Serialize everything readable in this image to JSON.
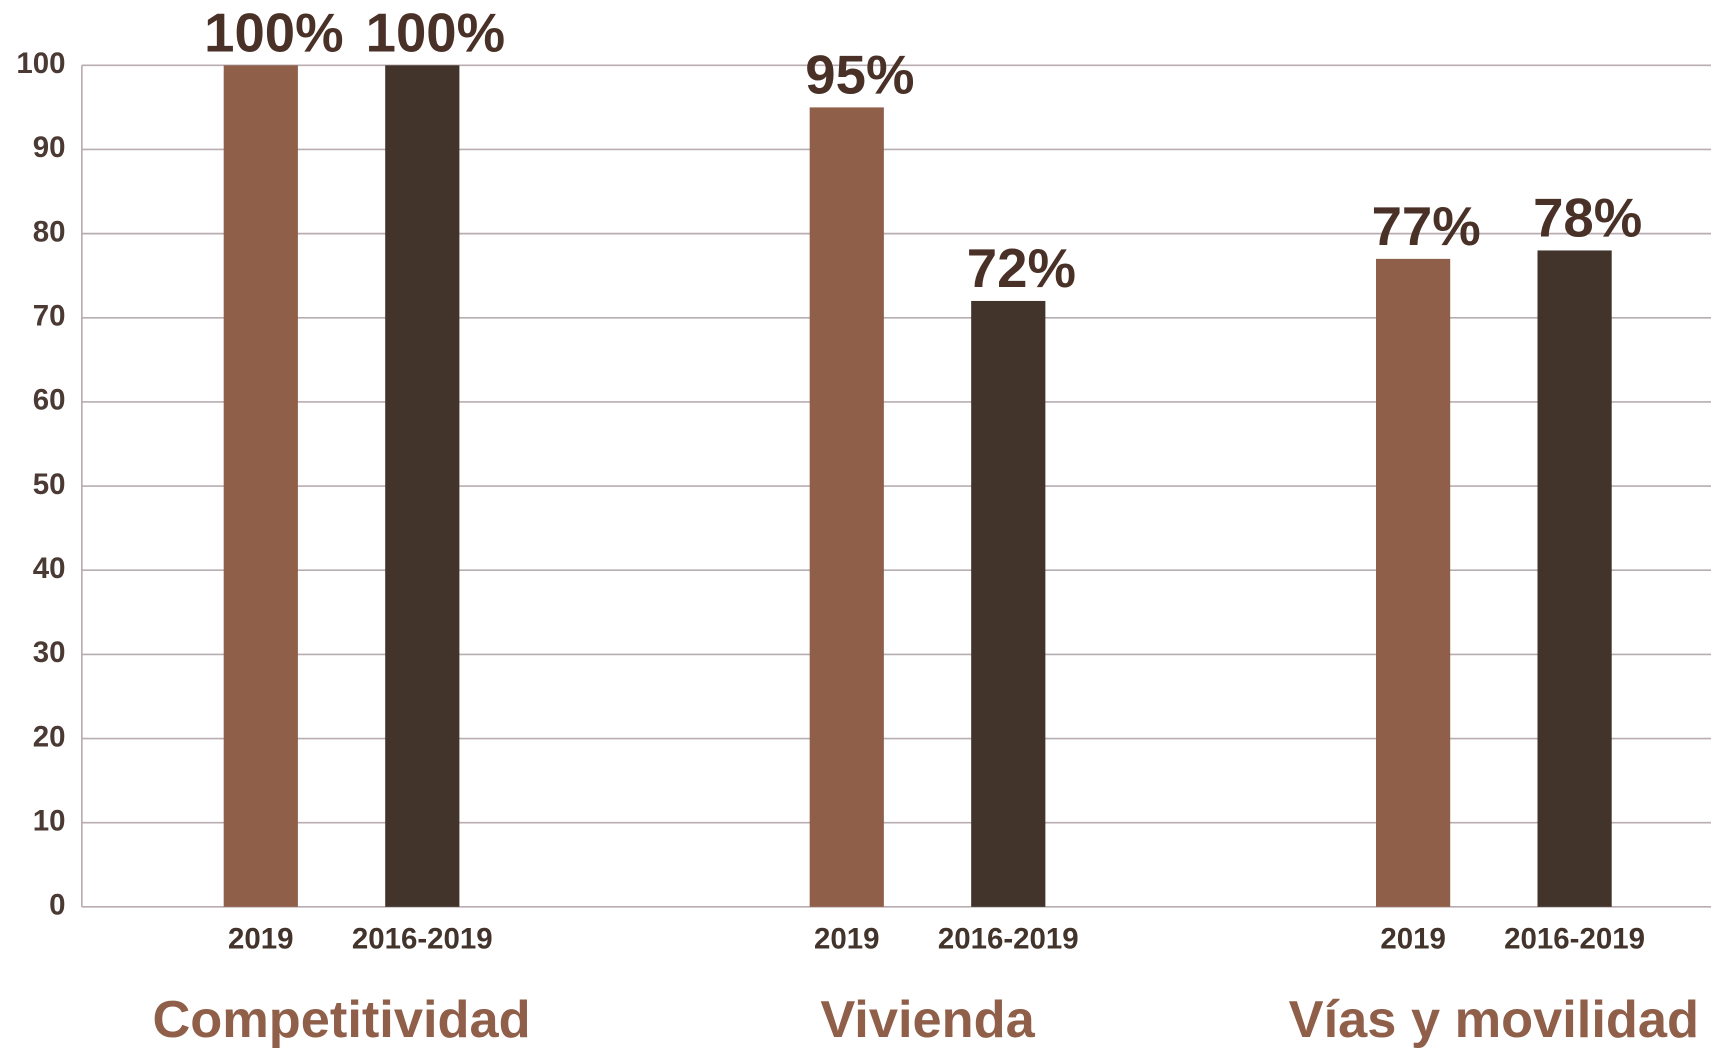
{
  "chart_data": {
    "type": "bar",
    "categories": [
      "Competitividad",
      "Vivienda",
      "Vías y movilidad"
    ],
    "series": [
      {
        "name": "2019",
        "color": "#8f5f4a",
        "values": [
          100,
          95,
          77
        ],
        "value_labels": [
          "100%",
          "95%",
          "77%"
        ]
      },
      {
        "name": "2016-2019",
        "color": "#42332b",
        "values": [
          100,
          72,
          78
        ],
        "value_labels": [
          "100%",
          "72%",
          "78%"
        ]
      }
    ],
    "ylim": [
      0,
      100
    ],
    "yticks": [
      0,
      10,
      20,
      30,
      40,
      50,
      60,
      70,
      80,
      90,
      100
    ],
    "grid": true
  }
}
